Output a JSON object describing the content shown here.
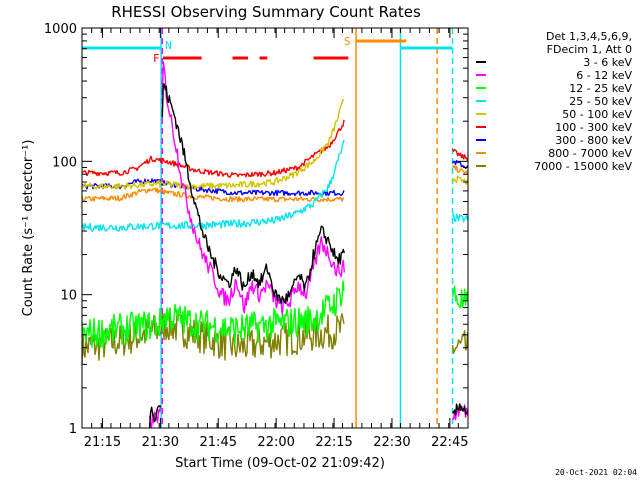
{
  "chart_data": {
    "type": "line",
    "title": "RHESSI Observing Summary Count Rates",
    "xlabel": "Start Time (09-Oct-02 21:09:42)",
    "ylabel": "Count Rate (s⁻¹ detector⁻¹)",
    "yscale": "log",
    "ylim": [
      1,
      1000
    ],
    "xlim_minutes_after_start": [
      0,
      100
    ],
    "x_tick_labels": [
      "21:15",
      "21:30",
      "21:45",
      "22:00",
      "22:15",
      "22:30",
      "22:45"
    ],
    "x_tick_minutes": [
      5.3,
      20.3,
      35.3,
      50.3,
      65.3,
      80.3,
      95.3
    ],
    "y_tick_labels": [
      "1",
      "10",
      "100",
      "1000"
    ],
    "y_tick_values": [
      1,
      10,
      100,
      1000
    ],
    "legend_header": [
      "Det 1,3,4,5,6,9,",
      "FDecim 1, Att 0"
    ],
    "legend_position": "right",
    "timestamp": "20-Oct-2021 02:04",
    "flags": [
      {
        "label": "N",
        "color": "#00e5ee",
        "segments": [
          [
            0,
            20.5
          ],
          [
            82.5,
            96
          ]
        ]
      },
      {
        "label": "F",
        "color": "#ff0000",
        "segments": [
          [
            21,
            31
          ],
          [
            39,
            43
          ],
          [
            46,
            48
          ],
          [
            60,
            69
          ]
        ]
      },
      {
        "label": "S",
        "color": "#ff8c00",
        "segments": [
          [
            71,
            84
          ]
        ]
      }
    ],
    "vertical_lines": [
      {
        "minute": 20.5,
        "color": "#00e5ee",
        "style": "solid"
      },
      {
        "minute": 20.8,
        "color": "#ff00ff",
        "style": "dashed"
      },
      {
        "minute": 71,
        "color": "#ff8c00",
        "style": "solid"
      },
      {
        "minute": 82.5,
        "color": "#00e5ee",
        "style": "solid"
      },
      {
        "minute": 92,
        "color": "#ff8c00",
        "style": "dashed"
      },
      {
        "minute": 96,
        "color": "#00e5ee",
        "style": "dashed"
      }
    ],
    "series": [
      {
        "name": "3 - 6 keV",
        "color": "#000000",
        "noise": 0.05,
        "segments": [
          {
            "x": [
              17.5,
              18,
              19,
              20,
              20.5
            ],
            "y": [
              1,
              1.5,
              1.2,
              1.6,
              1.3
            ]
          },
          {
            "x": [
              20.8,
              21,
              22,
              24,
              26,
              28,
              30,
              32,
              34,
              36,
              38,
              40,
              42,
              44,
              46,
              48,
              50,
              52,
              54,
              56,
              58,
              60,
              62,
              64,
              66,
              68
            ],
            "y": [
              200,
              400,
              320,
              220,
              130,
              70,
              40,
              25,
              18,
              14,
              12,
              16,
              11,
              15,
              12,
              16,
              10,
              9,
              10,
              14,
              11,
              20,
              30,
              25,
              18,
              20
            ]
          },
          {
            "x": [
              96,
              98,
              100
            ],
            "y": [
              1.2,
              1.5,
              1.3
            ]
          }
        ]
      },
      {
        "name": "6 - 12 keV",
        "color": "#ff00ff",
        "noise": 0.06,
        "segments": [
          {
            "x": [
              17.5,
              20.5
            ],
            "y": [
              1.1,
              1.3
            ]
          },
          {
            "x": [
              20.8,
              21,
              22,
              24,
              26,
              28,
              30,
              32,
              34,
              36,
              38,
              40,
              42,
              44,
              46,
              48,
              50,
              52,
              54,
              56,
              58,
              60,
              62,
              64,
              66,
              68
            ],
            "y": [
              300,
              560,
              300,
              150,
              70,
              40,
              25,
              18,
              14,
              10,
              9,
              13,
              8,
              12,
              10,
              12,
              9,
              8,
              9,
              12,
              10,
              16,
              25,
              20,
              15,
              16
            ]
          },
          {
            "x": [
              96,
              98,
              100
            ],
            "y": [
              1.2,
              1.4,
              1.3
            ]
          }
        ]
      },
      {
        "name": "12 - 25 keV",
        "color": "#00ff00",
        "noise": 0.12,
        "segments": [
          {
            "x": [
              0,
              10,
              20,
              22,
              30,
              40,
              50,
              60,
              66,
              68
            ],
            "y": [
              5,
              5.5,
              6,
              7,
              6,
              5.5,
              6,
              6.5,
              9,
              12
            ]
          },
          {
            "x": [
              96,
              98,
              100
            ],
            "y": [
              10,
              9,
              8
            ]
          }
        ]
      },
      {
        "name": "25 - 50 keV",
        "color": "#00e5ee",
        "noise": 0.03,
        "segments": [
          {
            "x": [
              0,
              10,
              20,
              30,
              40,
              50,
              55,
              60,
              64,
              66,
              68
            ],
            "y": [
              32,
              32,
              33,
              33,
              34,
              36,
              40,
              48,
              65,
              95,
              140
            ]
          },
          {
            "x": [
              96,
              98,
              100
            ],
            "y": [
              38,
              37,
              37
            ]
          }
        ]
      },
      {
        "name": "50 - 100 keV",
        "color": "#d4c400",
        "noise": 0.025,
        "segments": [
          {
            "x": [
              0,
              10,
              20,
              30,
              40,
              50,
              55,
              60,
              64,
              66,
              68
            ],
            "y": [
              65,
              65,
              68,
              65,
              66,
              70,
              80,
              100,
              140,
              200,
              300
            ]
          },
          {
            "x": [
              96,
              98,
              100
            ],
            "y": [
              75,
              72,
              70
            ]
          }
        ]
      },
      {
        "name": "100 - 300 keV",
        "color": "#ff0000",
        "noise": 0.02,
        "segments": [
          {
            "x": [
              0,
              10,
              14,
              18,
              22,
              30,
              40,
              50,
              56,
              60,
              64,
              66,
              68
            ],
            "y": [
              82,
              82,
              88,
              105,
              100,
              85,
              78,
              82,
              90,
              110,
              130,
              160,
              200
            ]
          },
          {
            "x": [
              96,
              98,
              100
            ],
            "y": [
              120,
              110,
              105
            ]
          }
        ]
      },
      {
        "name": "300 - 800 keV",
        "color": "#0000ff",
        "noise": 0.02,
        "segments": [
          {
            "x": [
              0,
              10,
              14,
              18,
              22,
              30,
              40,
              50,
              60,
              68
            ],
            "y": [
              65,
              65,
              70,
              72,
              68,
              62,
              58,
              58,
              58,
              58
            ]
          },
          {
            "x": [
              96,
              98,
              100
            ],
            "y": [
              100,
              95,
              90
            ]
          }
        ]
      },
      {
        "name": "800 - 7000 keV",
        "color": "#ff8c00",
        "noise": 0.02,
        "segments": [
          {
            "x": [
              0,
              10,
              14,
              18,
              22,
              30,
              40,
              50,
              60,
              68
            ],
            "y": [
              52,
              53,
              58,
              62,
              58,
              54,
              52,
              52,
              52,
              52
            ]
          },
          {
            "x": [
              96,
              98,
              100
            ],
            "y": [
              90,
              85,
              82
            ]
          }
        ]
      },
      {
        "name": "7000 - 15000 keV",
        "color": "#808000",
        "noise": 0.13,
        "segments": [
          {
            "x": [
              0,
              10,
              20,
              22,
              30,
              40,
              50,
              60,
              68
            ],
            "y": [
              4,
              4.5,
              5.5,
              6,
              5,
              4,
              4.5,
              5,
              5.5
            ]
          },
          {
            "x": [
              96,
              98,
              100
            ],
            "y": [
              4,
              4,
              4
            ]
          }
        ]
      }
    ]
  }
}
